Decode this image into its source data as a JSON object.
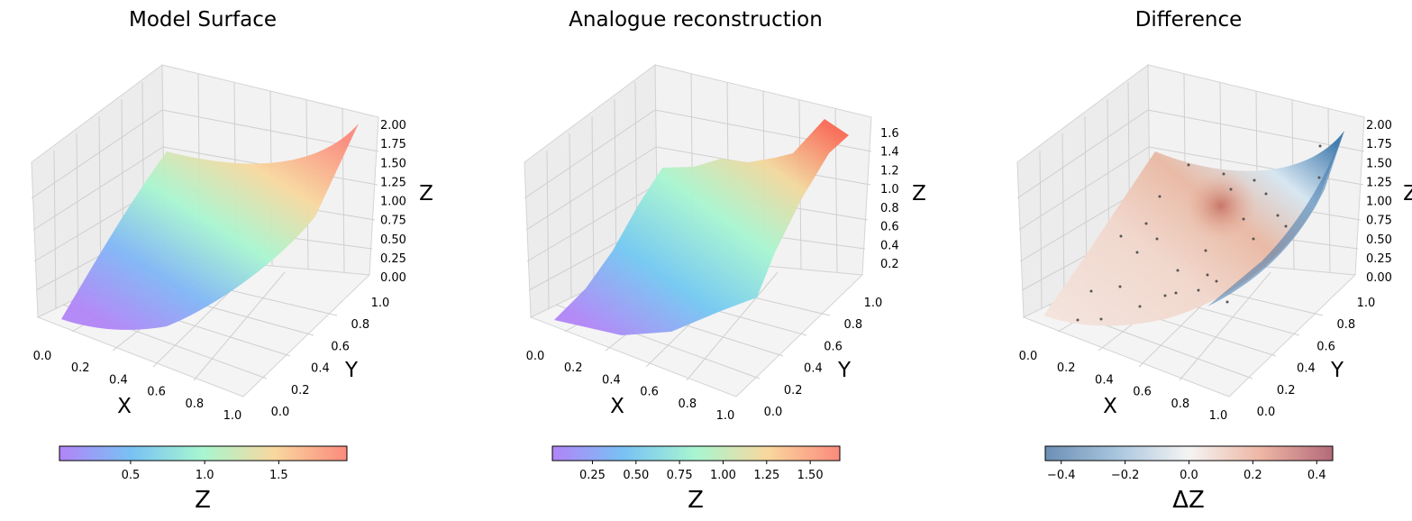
{
  "chart_data": [
    {
      "type": "surface3d",
      "title": "Model Surface",
      "xlabel": "X",
      "ylabel": "Y",
      "zlabel": "Z",
      "xticks": [
        "0.0",
        "0.2",
        "0.4",
        "0.6",
        "0.8",
        "1.0"
      ],
      "yticks": [
        "0.0",
        "0.2",
        "0.4",
        "0.6",
        "0.8",
        "1.0"
      ],
      "zticks": [
        "0.00",
        "0.25",
        "0.50",
        "0.75",
        "1.00",
        "1.25",
        "1.50",
        "1.75",
        "2.00"
      ],
      "zlim": [
        0,
        2.0
      ],
      "colormap": "rainbow",
      "surface_corner_z": {
        "x0y0": 0.0,
        "x1y0": 1.0,
        "x0y1": 1.0,
        "x1y1": 2.0
      },
      "colorbar": {
        "label": "Z",
        "ticks": [
          "0.5",
          "1.0",
          "1.5"
        ],
        "range": [
          0.02,
          1.96
        ]
      }
    },
    {
      "type": "surface3d",
      "title": "Analogue reconstruction",
      "xlabel": "X",
      "ylabel": "Y",
      "zlabel": "Z",
      "xticks": [
        "0.0",
        "0.2",
        "0.4",
        "0.6",
        "0.8",
        "1.0"
      ],
      "yticks": [
        "0.0",
        "0.2",
        "0.4",
        "0.6",
        "0.8",
        "1.0"
      ],
      "zticks": [
        "0.2",
        "0.4",
        "0.6",
        "0.8",
        "1.0",
        "1.2",
        "1.4",
        "1.6"
      ],
      "zlim": [
        0.1,
        1.7
      ],
      "colormap": "rainbow",
      "surface_corner_z": {
        "x0y0": 0.05,
        "x1y0": 0.9,
        "x0y1": 0.9,
        "x1y1": 1.65
      },
      "colorbar": {
        "label": "Z",
        "ticks": [
          "0.25",
          "0.50",
          "0.75",
          "1.00",
          "1.25",
          "1.50"
        ],
        "range": [
          0.02,
          1.67
        ]
      }
    },
    {
      "type": "surface3d",
      "title": "Difference",
      "xlabel": "X",
      "ylabel": "Y",
      "zlabel": "Z",
      "xticks": [
        "0.0",
        "0.2",
        "0.4",
        "0.6",
        "0.8",
        "1.0"
      ],
      "yticks": [
        "0.0",
        "0.2",
        "0.4",
        "0.6",
        "0.8",
        "1.0"
      ],
      "zticks": [
        "0.00",
        "0.25",
        "0.50",
        "0.75",
        "1.00",
        "1.25",
        "1.50",
        "1.75",
        "2.00"
      ],
      "zlim": [
        0,
        2.0
      ],
      "colormap": "RdBu_r",
      "surface_corner_z": {
        "x0y0": 0.0,
        "x1y0": 1.0,
        "x0y1": 1.0,
        "x1y1": 2.0
      },
      "colorbar": {
        "label": "ΔZ",
        "ticks": [
          "−0.4",
          "−0.2",
          "0.0",
          "0.2",
          "0.4"
        ],
        "range": [
          -0.45,
          0.45
        ]
      }
    }
  ]
}
